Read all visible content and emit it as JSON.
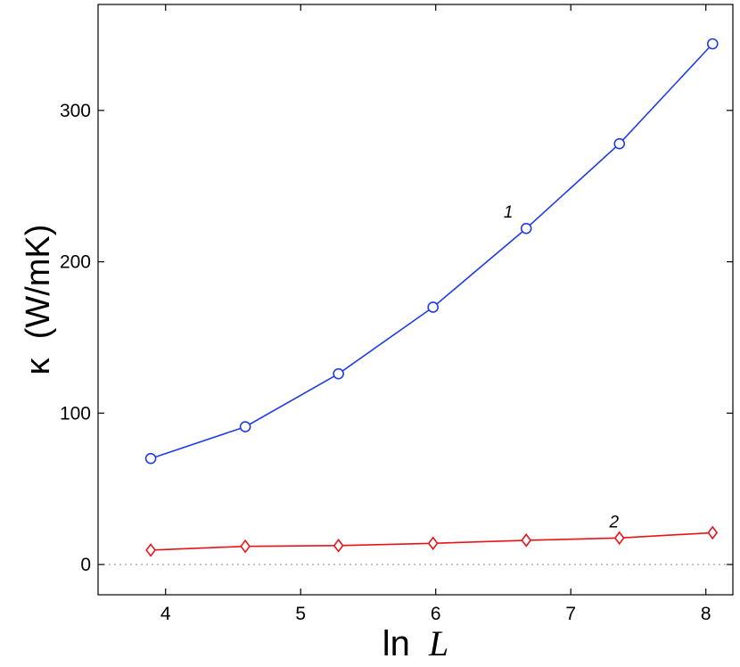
{
  "chart_data": {
    "type": "line",
    "xlabel": "ln L",
    "xlabel_prefix": "ln",
    "xlabel_var": "L",
    "ylabel": "κ  (W/mK)",
    "xlim": [
      3.5,
      8.2
    ],
    "ylim": [
      -20,
      370
    ],
    "xticks": [
      4,
      5,
      6,
      7,
      8
    ],
    "yticks": [
      0,
      100,
      200,
      300
    ],
    "zero_line": true,
    "series": [
      {
        "name": "1",
        "color": "#1f3de8",
        "marker": "circle",
        "x": [
          3.89,
          4.59,
          5.28,
          5.98,
          6.67,
          7.36,
          8.05
        ],
        "y": [
          70,
          91,
          126,
          170,
          222,
          278,
          344
        ]
      },
      {
        "name": "2",
        "color": "#e8141a",
        "marker": "diamond",
        "x": [
          3.89,
          4.59,
          5.28,
          5.98,
          6.67,
          7.36,
          8.05
        ],
        "y": [
          9.5,
          12,
          12.5,
          14,
          16,
          17.5,
          21
        ]
      }
    ]
  }
}
